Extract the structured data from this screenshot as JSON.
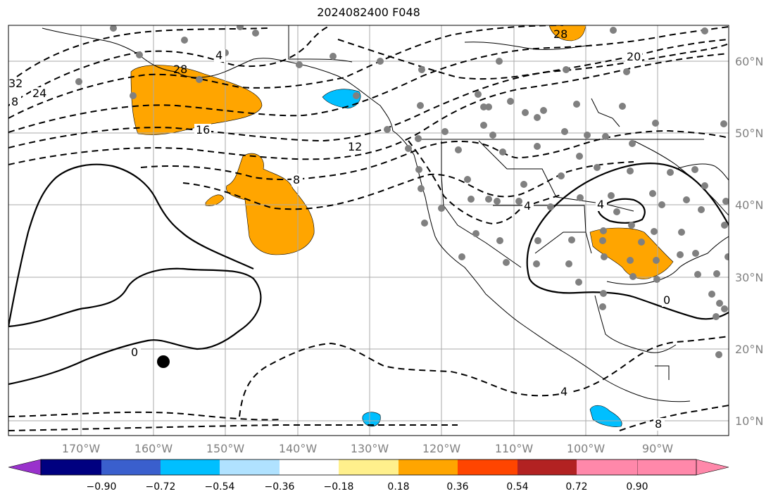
{
  "title": "2024082400 F048",
  "map": {
    "latitude_labels": [
      "60°N",
      "50°N",
      "40°N",
      "30°N",
      "20°N",
      "10°N"
    ],
    "longitude_labels": [
      "170°W",
      "160°W",
      "150°W",
      "140°W",
      "130°W",
      "120°W",
      "110°W",
      "100°W",
      "90°W"
    ],
    "contour_labels": [
      "32",
      "24",
      "28",
      "16",
      "12",
      "8",
      "4",
      "4",
      "0",
      "0",
      "4",
      "8",
      "28",
      "20",
      "8",
      "4"
    ],
    "fill_colors": {
      "positive": "#ffa500",
      "negative": "#00bfff",
      "station": "#808080",
      "marker": "#000000"
    }
  },
  "colorbar": {
    "colors": [
      "#9932cc",
      "#000080",
      "#3a5fcd",
      "#00bfff",
      "#b0e2ff",
      "#ffffff",
      "#fff08c",
      "#ffa500",
      "#ff4500",
      "#b22222",
      "#ff88aa"
    ],
    "tick_labels": [
      "−0.90",
      "−0.72",
      "−0.54",
      "−0.36",
      "−0.18",
      "0.18",
      "0.36",
      "0.54",
      "0.72",
      "0.90"
    ]
  }
}
